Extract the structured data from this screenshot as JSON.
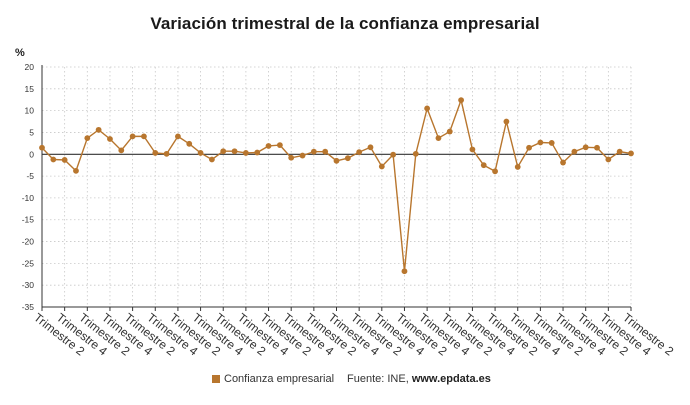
{
  "title": "Variación trimestral de la confianza empresarial",
  "y_unit": "%",
  "legend": {
    "label": "Confianza empresarial",
    "color": "#b8762e"
  },
  "source": {
    "prefix": "Fuente: INE, ",
    "site": "www.epdata.es"
  },
  "colors": {
    "line": "#b8762e",
    "grid": "#c8c8c8",
    "zero": "#333333",
    "axis": "#333333"
  },
  "chart_data": {
    "type": "line",
    "title": "Variación trimestral de la confianza empresarial",
    "ylabel": "%",
    "ylim": [
      -35,
      20
    ],
    "yticks": [
      20,
      15,
      10,
      5,
      0,
      -5,
      -10,
      -15,
      -20,
      -25,
      -30,
      -35
    ],
    "grid": true,
    "legend_position": "bottom",
    "xtick_labels": [
      "Trimestre 2",
      "Trimestre 4",
      "Trimestre 2",
      "Trimestre 4",
      "Trimestre 2",
      "Trimestre 4",
      "Trimestre 2",
      "Trimestre 4",
      "Trimestre 2",
      "Trimestre 4",
      "Trimestre 2",
      "Trimestre 4",
      "Trimestre 2",
      "Trimestre 4",
      "Trimestre 2",
      "Trimestre 4",
      "Trimestre 2",
      "Trimestre 4",
      "Trimestre 2",
      "Trimestre 4",
      "Trimestre 2",
      "Trimestre 4",
      "Trimestre 2",
      "Trimestre 4",
      "Trimestre 2",
      "Trimestre 4",
      "Trimestre 2"
    ],
    "series": [
      {
        "name": "Confianza empresarial",
        "values": [
          1.5,
          -1.2,
          -1.3,
          -3.8,
          3.7,
          5.6,
          3.5,
          0.9,
          4.1,
          4.1,
          0.3,
          0.1,
          4.1,
          2.4,
          0.3,
          -1.2,
          0.7,
          0.7,
          0.3,
          0.4,
          1.9,
          2.1,
          -0.8,
          -0.3,
          0.6,
          0.6,
          -1.5,
          -0.9,
          0.5,
          1.6,
          -2.8,
          -0.1,
          -26.8,
          0.1,
          10.5,
          3.7,
          5.2,
          12.4,
          1.1,
          -2.5,
          -3.9,
          7.5,
          -2.9,
          1.5,
          2.7,
          2.6,
          -1.9,
          0.6,
          1.6,
          1.5,
          -1.2,
          0.6,
          0.2
        ]
      }
    ]
  }
}
